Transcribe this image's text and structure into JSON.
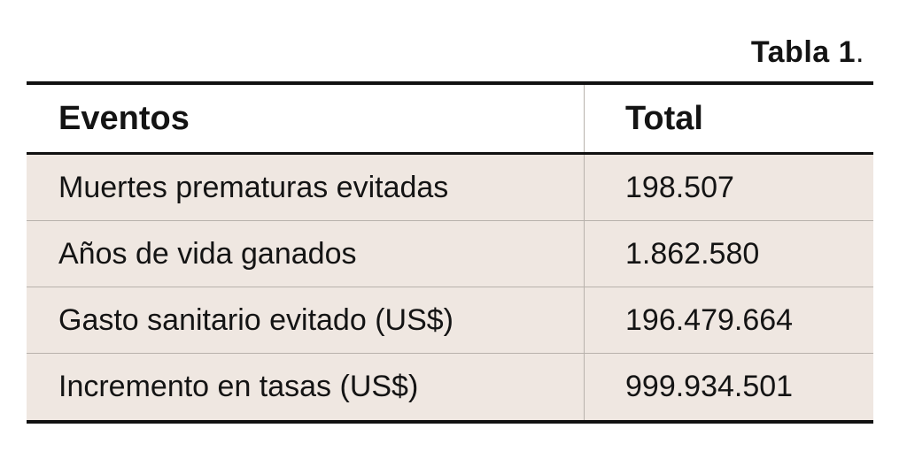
{
  "caption": {
    "label": "Tabla 1",
    "punct": "."
  },
  "table": {
    "headers": {
      "events": "Eventos",
      "total": "Total"
    },
    "rows": [
      {
        "event": "Muertes prematuras evitadas",
        "total": "198.507"
      },
      {
        "event": "Años de vida ganados",
        "total": "1.862.580"
      },
      {
        "event": "Gasto sanitario evitado (US$)",
        "total": "196.479.664"
      },
      {
        "event": "Incremento en tasas (US$)",
        "total": "999.934.501"
      }
    ]
  },
  "colors": {
    "row_background": "#efe7e1",
    "rule": "#111111",
    "divider": "#b8b2ac"
  }
}
